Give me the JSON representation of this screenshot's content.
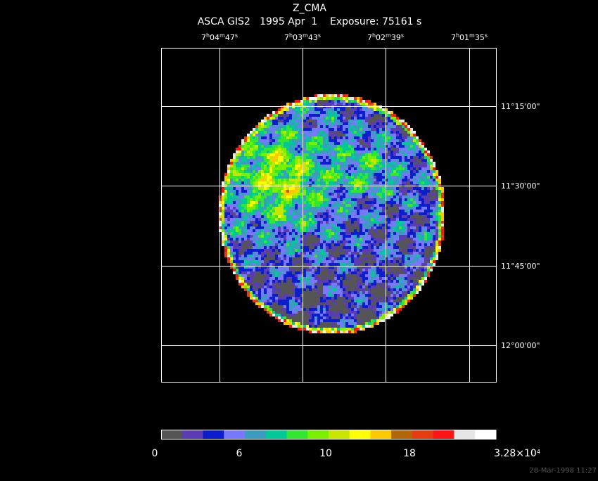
{
  "title": "Z_CMA",
  "subtitle": "ASCA GIS2   1995 Apr  1    Exposure: 75161 s",
  "ra_labels": [
    [
      "7",
      "h",
      "04",
      "m",
      "47",
      "s"
    ],
    [
      "7",
      "h",
      "03",
      "m",
      "43",
      "s"
    ],
    [
      "7",
      "h",
      "02",
      "m",
      "39",
      "s"
    ],
    [
      "7",
      "h",
      "01",
      "m",
      "35",
      "s"
    ]
  ],
  "dec_labels": [
    "11°15'00\"",
    "11°30'00\"",
    "11°45'00\"",
    "12°00'00\""
  ],
  "colorbar_labels": [
    [
      "0"
    ],
    [
      "6"
    ],
    [
      "10"
    ],
    [
      "18"
    ],
    [
      "3.28×10",
      "4"
    ]
  ],
  "timestamp": "28-Mar-1998 11:27"
}
